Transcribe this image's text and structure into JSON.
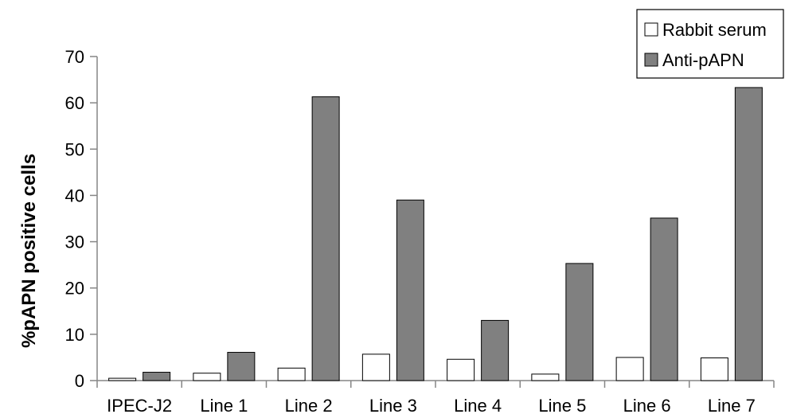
{
  "chart_data": {
    "type": "bar",
    "title": "",
    "xlabel": "",
    "ylabel": "%pAPN positive cells",
    "ylim": [
      0,
      70
    ],
    "yticks": [
      0,
      10,
      20,
      30,
      40,
      50,
      60,
      70
    ],
    "grid": false,
    "legend_position": "top-right",
    "categories": [
      "IPEC-J2",
      "Line 1",
      "Line 2",
      "Line 3",
      "Line 4",
      "Line 5",
      "Line 6",
      "Line 7"
    ],
    "series": [
      {
        "name": "Rabbit serum",
        "fill": "#ffffff",
        "stroke": "#000000",
        "values": [
          0.5,
          1.6,
          2.7,
          5.7,
          4.6,
          1.4,
          5.0,
          4.9
        ]
      },
      {
        "name": "Anti-pAPN",
        "fill": "#808080",
        "stroke": "#000000",
        "values": [
          1.8,
          6.1,
          61.3,
          39.0,
          13.0,
          25.3,
          35.1,
          63.3
        ]
      }
    ]
  }
}
